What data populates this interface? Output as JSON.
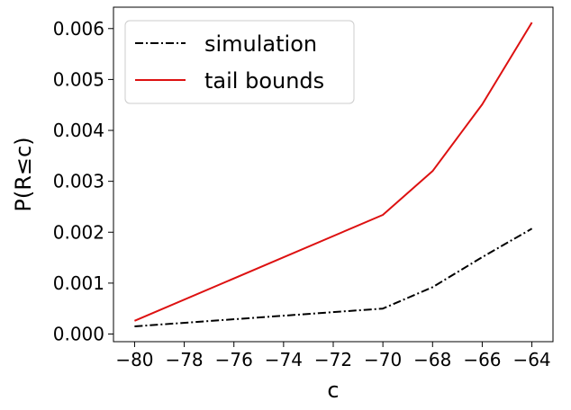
{
  "chart_data": {
    "type": "line",
    "xlabel": "c",
    "ylabel": "P(R≤c)",
    "xlim": [
      -80.85,
      -63.15
    ],
    "ylim": [
      -0.00015,
      0.00642
    ],
    "x_ticks": [
      -80,
      -78,
      -76,
      -74,
      -72,
      -70,
      -68,
      -66,
      -64
    ],
    "x_tick_labels": [
      "−80",
      "−78",
      "−76",
      "−74",
      "−72",
      "−70",
      "−68",
      "−66",
      "−64"
    ],
    "y_ticks": [
      0.0,
      0.001,
      0.002,
      0.003,
      0.004,
      0.005,
      0.006
    ],
    "y_tick_labels": [
      "0.000",
      "0.001",
      "0.002",
      "0.003",
      "0.004",
      "0.005",
      "0.006"
    ],
    "grid": false,
    "legend_position": "top-left",
    "x": [
      -80,
      -70,
      -68,
      -66,
      -64
    ],
    "series": [
      {
        "name": "simulation",
        "color": "#000000",
        "style": "dashdot",
        "values": [
          0.00015,
          0.0005,
          0.00092,
          0.00151,
          0.00207
        ]
      },
      {
        "name": "tail bounds",
        "color": "#dd1111",
        "style": "solid",
        "values": [
          0.00026,
          0.00234,
          0.0032,
          0.00451,
          0.00612
        ]
      }
    ]
  }
}
